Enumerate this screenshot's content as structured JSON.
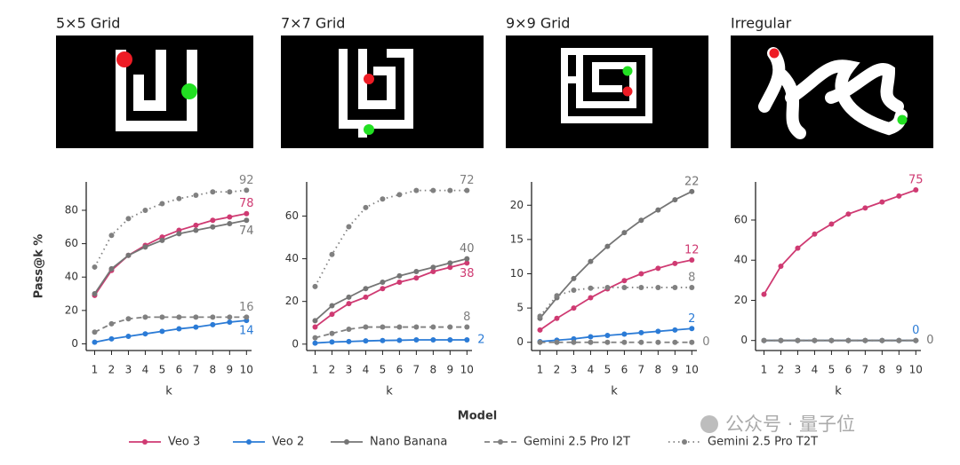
{
  "chart_data": [
    {
      "type": "line",
      "title": "5×5 Grid",
      "xlabel": "k",
      "ylabel": "Pass@k %",
      "x": [
        1,
        2,
        3,
        4,
        5,
        6,
        7,
        8,
        9,
        10
      ],
      "xlim": [
        0.5,
        10.3
      ],
      "xticks": [
        1,
        2,
        3,
        4,
        5,
        6,
        7,
        8,
        9,
        10
      ],
      "ylim": [
        -4,
        97
      ],
      "yticks": [
        0,
        20,
        40,
        60,
        80
      ],
      "series": [
        {
          "name": "Veo 3",
          "color": "#cf3a72",
          "dash": "solid",
          "values": [
            29,
            44,
            53,
            59,
            64,
            68,
            71,
            74,
            76,
            78
          ]
        },
        {
          "name": "Veo 2",
          "color": "#2b7bd6",
          "dash": "solid",
          "values": [
            1,
            3,
            4.5,
            6,
            7.5,
            9,
            10,
            11.5,
            13,
            14
          ]
        },
        {
          "name": "Nano Banana",
          "color": "#757575",
          "dash": "solid",
          "values": [
            30,
            45,
            53,
            58,
            62,
            66,
            68,
            70,
            72,
            74
          ]
        },
        {
          "name": "Gemini 2.5 Pro I2T",
          "color": "#808080",
          "dash": "dashed",
          "values": [
            7,
            12,
            15,
            16,
            16,
            16,
            16,
            16,
            16,
            16
          ]
        },
        {
          "name": "Gemini 2.5 Pro T2T",
          "color": "#808080",
          "dash": "dotted",
          "values": [
            46,
            65,
            75,
            80,
            84,
            87,
            89,
            91,
            91,
            92
          ]
        }
      ]
    },
    {
      "type": "line",
      "title": "7×7 Grid",
      "xlabel": "k",
      "x": [
        1,
        2,
        3,
        4,
        5,
        6,
        7,
        8,
        9,
        10
      ],
      "xlim": [
        0.5,
        10.3
      ],
      "xticks": [
        1,
        2,
        3,
        4,
        5,
        6,
        7,
        8,
        9,
        10
      ],
      "ylim": [
        -3,
        76
      ],
      "yticks": [
        0,
        20,
        40,
        60
      ],
      "series": [
        {
          "name": "Veo 3",
          "color": "#cf3a72",
          "dash": "solid",
          "values": [
            8,
            14,
            19,
            22,
            26,
            29,
            31,
            34,
            36,
            38
          ]
        },
        {
          "name": "Veo 2",
          "color": "#2b7bd6",
          "dash": "solid",
          "values": [
            0.5,
            1,
            1.2,
            1.5,
            1.7,
            1.8,
            2,
            2,
            2,
            2
          ]
        },
        {
          "name": "Nano Banana",
          "color": "#757575",
          "dash": "solid",
          "values": [
            11,
            18,
            22,
            26,
            29,
            32,
            34,
            36,
            38,
            40
          ]
        },
        {
          "name": "Gemini 2.5 Pro I2T",
          "color": "#808080",
          "dash": "dashed",
          "values": [
            3,
            5,
            7,
            8,
            8,
            8,
            8,
            8,
            8,
            8
          ]
        },
        {
          "name": "Gemini 2.5 Pro T2T",
          "color": "#808080",
          "dash": "dotted",
          "values": [
            27,
            42,
            55,
            64,
            68,
            70,
            72,
            72,
            72,
            72
          ]
        }
      ]
    },
    {
      "type": "line",
      "title": "9×9 Grid",
      "xlabel": "k",
      "x": [
        1,
        2,
        3,
        4,
        5,
        6,
        7,
        8,
        9,
        10
      ],
      "xlim": [
        0.5,
        10.3
      ],
      "xticks": [
        1,
        2,
        3,
        4,
        5,
        6,
        7,
        8,
        9,
        10
      ],
      "ylim": [
        -1.2,
        23.4
      ],
      "yticks": [
        0,
        5,
        10,
        15,
        20
      ],
      "series": [
        {
          "name": "Veo 3",
          "color": "#cf3a72",
          "dash": "solid",
          "values": [
            1.8,
            3.5,
            5,
            6.5,
            7.8,
            9,
            10,
            10.8,
            11.5,
            12
          ]
        },
        {
          "name": "Veo 2",
          "color": "#2b7bd6",
          "dash": "solid",
          "values": [
            0.1,
            0.3,
            0.5,
            0.8,
            1,
            1.2,
            1.4,
            1.6,
            1.8,
            2
          ]
        },
        {
          "name": "Nano Banana",
          "color": "#757575",
          "dash": "solid",
          "values": [
            3.5,
            6.5,
            9.3,
            11.8,
            14,
            16,
            17.8,
            19.3,
            20.8,
            22
          ]
        },
        {
          "name": "Gemini 2.5 Pro I2T",
          "color": "#808080",
          "dash": "dashed",
          "values": [
            0,
            0,
            0,
            0,
            0,
            0,
            0,
            0,
            0,
            0
          ]
        },
        {
          "name": "Gemini 2.5 Pro T2T",
          "color": "#808080",
          "dash": "dotted",
          "values": [
            3.8,
            6.8,
            7.6,
            7.9,
            8,
            8,
            8,
            8,
            8,
            8
          ]
        }
      ]
    },
    {
      "type": "line",
      "title": "Irregular",
      "xlabel": "k",
      "x": [
        1,
        2,
        3,
        4,
        5,
        6,
        7,
        8,
        9,
        10
      ],
      "xlim": [
        0.5,
        10.3
      ],
      "xticks": [
        1,
        2,
        3,
        4,
        5,
        6,
        7,
        8,
        9,
        10
      ],
      "ylim": [
        -5,
        79
      ],
      "yticks": [
        0,
        20,
        40,
        60
      ],
      "end_label_series": [
        0,
        1,
        2
      ],
      "series": [
        {
          "name": "Veo 3",
          "color": "#cf3a72",
          "dash": "solid",
          "values": [
            23,
            37,
            46,
            53,
            58,
            63,
            66,
            69,
            72,
            75
          ]
        },
        {
          "name": "Veo 2",
          "color": "#2b7bd6",
          "dash": "solid",
          "values": [
            0,
            0,
            0,
            0,
            0,
            0,
            0,
            0,
            0,
            0
          ]
        },
        {
          "name": "Nano Banana",
          "color": "#757575",
          "dash": "solid",
          "values": [
            0,
            0,
            0,
            0,
            0,
            0,
            0,
            0,
            0,
            0
          ]
        },
        {
          "name": "Gemini 2.5 Pro I2T",
          "color": "#808080",
          "dash": "dashed",
          "values": [
            0,
            0,
            0,
            0,
            0,
            0,
            0,
            0,
            0,
            0
          ]
        },
        {
          "name": "Gemini 2.5 Pro T2T",
          "color": "#808080",
          "dash": "dotted",
          "values": [
            0,
            0,
            0,
            0,
            0,
            0,
            0,
            0,
            0,
            0
          ]
        }
      ]
    }
  ],
  "legend": {
    "title": "Model"
  },
  "watermark": "公众号 · 量子位"
}
